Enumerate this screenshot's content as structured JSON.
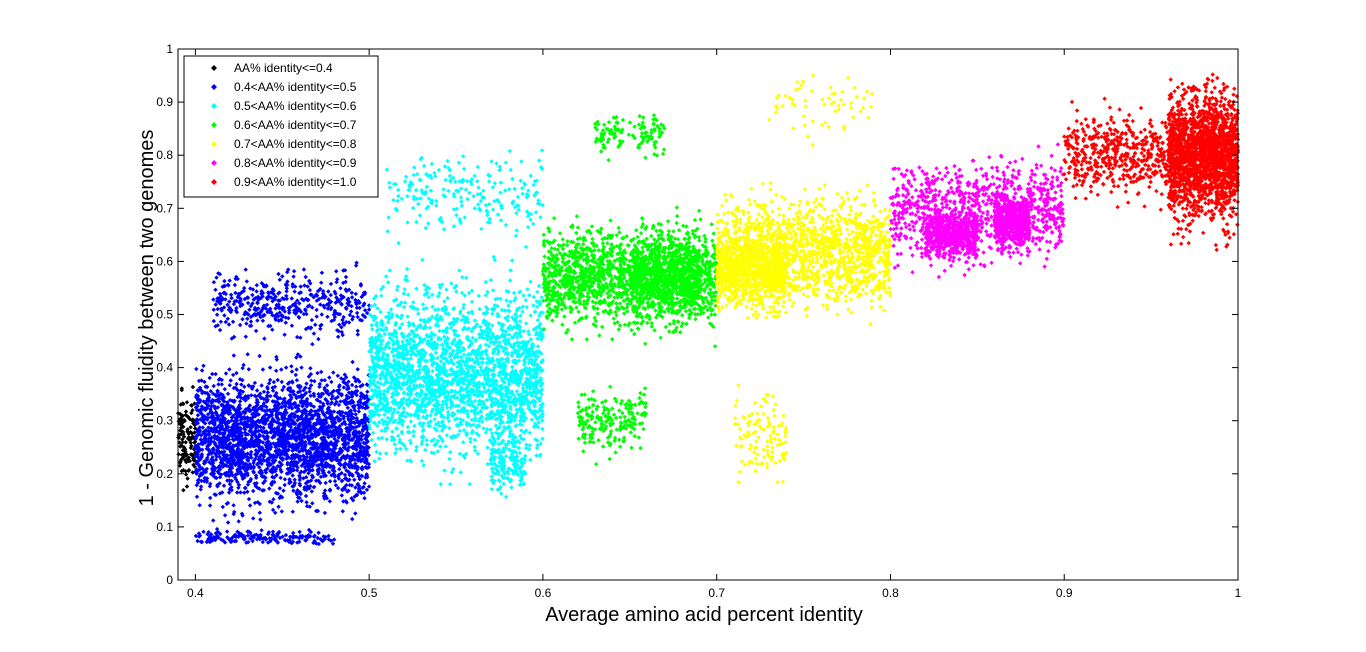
{
  "chart_data": {
    "type": "scatter",
    "title": "",
    "xlabel": "Average amino acid percent identity",
    "ylabel": "1 - Genomic fluidity between two genomes",
    "xlim": [
      0.39,
      1.0
    ],
    "ylim": [
      0,
      1
    ],
    "xticks": [
      "0.4",
      "0.5",
      "0.6",
      "0.7",
      "0.8",
      "0.9",
      "1"
    ],
    "yticks": [
      "0",
      "0.1",
      "0.2",
      "0.3",
      "0.4",
      "0.5",
      "0.6",
      "0.7",
      "0.8",
      "0.9",
      "1"
    ],
    "grid": false,
    "legend_position": "top-left",
    "marker": "diamond",
    "series": [
      {
        "name": "AA% identity<=0.4",
        "color": "#000000",
        "x_range": [
          0.39,
          0.4
        ],
        "clusters": [
          {
            "x": [
              0.39,
              0.4
            ],
            "y": [
              0.1,
              0.42
            ],
            "n": 120
          }
        ]
      },
      {
        "name": "0.4<AA% identity<=0.5",
        "color": "#0000ff",
        "x_range": [
          0.4,
          0.5
        ],
        "clusters": [
          {
            "x": [
              0.4,
              0.5
            ],
            "y": [
              0.08,
              0.46
            ],
            "n": 2600
          },
          {
            "x": [
              0.41,
              0.5
            ],
            "y": [
              0.42,
              0.62
            ],
            "n": 420
          },
          {
            "x": [
              0.4,
              0.48
            ],
            "y": [
              0.06,
              0.1
            ],
            "n": 160
          }
        ]
      },
      {
        "name": "0.5<AA% identity<=0.6",
        "color": "#00ffff",
        "x_range": [
          0.5,
          0.6
        ],
        "clusters": [
          {
            "x": [
              0.5,
              0.6
            ],
            "y": [
              0.14,
              0.64
            ],
            "n": 2400
          },
          {
            "x": [
              0.51,
              0.6
            ],
            "y": [
              0.6,
              0.85
            ],
            "n": 220
          },
          {
            "x": [
              0.57,
              0.59
            ],
            "y": [
              0.13,
              0.3
            ],
            "n": 160
          }
        ]
      },
      {
        "name": "0.6<AA% identity<=0.7",
        "color": "#00ff00",
        "x_range": [
          0.6,
          0.7
        ],
        "clusters": [
          {
            "x": [
              0.6,
              0.7
            ],
            "y": [
              0.42,
              0.72
            ],
            "n": 1500
          },
          {
            "x": [
              0.65,
              0.69
            ],
            "y": [
              0.45,
              0.7
            ],
            "n": 600
          },
          {
            "x": [
              0.62,
              0.66
            ],
            "y": [
              0.2,
              0.4
            ],
            "n": 200
          },
          {
            "x": [
              0.63,
              0.67
            ],
            "y": [
              0.78,
              0.9
            ],
            "n": 120
          }
        ]
      },
      {
        "name": "0.7<AA% identity<=0.8",
        "color": "#ffff00",
        "x_range": [
          0.7,
          0.8
        ],
        "clusters": [
          {
            "x": [
              0.7,
              0.8
            ],
            "y": [
              0.45,
              0.78
            ],
            "n": 1500
          },
          {
            "x": [
              0.7,
              0.74
            ],
            "y": [
              0.48,
              0.68
            ],
            "n": 700
          },
          {
            "x": [
              0.71,
              0.74
            ],
            "y": [
              0.13,
              0.4
            ],
            "n": 120
          },
          {
            "x": [
              0.73,
              0.79
            ],
            "y": [
              0.8,
              0.98
            ],
            "n": 60
          }
        ]
      },
      {
        "name": "0.8<AA% identity<=0.9",
        "color": "#ff00ff",
        "x_range": [
          0.8,
          0.9
        ],
        "clusters": [
          {
            "x": [
              0.8,
              0.9
            ],
            "y": [
              0.55,
              0.85
            ],
            "n": 900
          },
          {
            "x": [
              0.82,
              0.85
            ],
            "y": [
              0.58,
              0.72
            ],
            "n": 500
          },
          {
            "x": [
              0.86,
              0.88
            ],
            "y": [
              0.6,
              0.75
            ],
            "n": 500
          }
        ]
      },
      {
        "name": "0.9<AA% identity<=1.0",
        "color": "#ff0000",
        "x_range": [
          0.9,
          1.0
        ],
        "clusters": [
          {
            "x": [
              0.9,
              1.0
            ],
            "y": [
              0.68,
              0.92
            ],
            "n": 800
          },
          {
            "x": [
              0.96,
              1.0
            ],
            "y": [
              0.6,
              1.0
            ],
            "n": 1600
          }
        ]
      }
    ]
  }
}
